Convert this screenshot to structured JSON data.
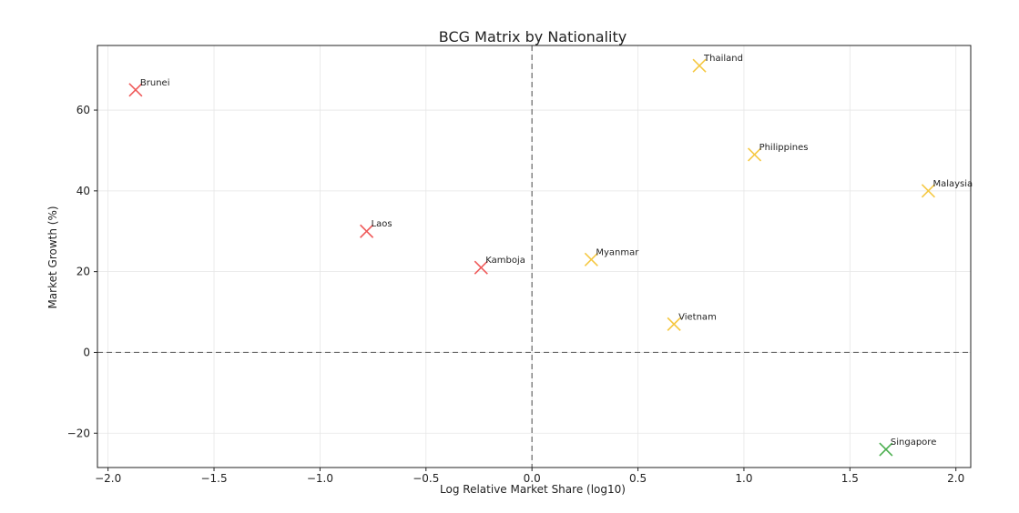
{
  "chart_data": {
    "type": "scatter",
    "title": "BCG Matrix by Nationality",
    "xlabel": "Log Relative Market Share (log10)",
    "ylabel": "Market Growth (%)",
    "xlim": [
      -2.05,
      2.07
    ],
    "ylim": [
      -28.5,
      76
    ],
    "xticks": [
      -2.0,
      -1.5,
      -1.0,
      -0.5,
      0.0,
      0.5,
      1.0,
      1.5,
      2.0
    ],
    "xtick_labels": [
      "−2.0",
      "−1.5",
      "−1.0",
      "−0.5",
      "0.0",
      "0.5",
      "1.0",
      "1.5",
      "2.0"
    ],
    "yticks": [
      -20,
      0,
      20,
      40,
      60
    ],
    "ytick_labels": [
      "−20",
      "0",
      "20",
      "40",
      "60"
    ],
    "grid": true,
    "reference_lines": {
      "x": 0,
      "y": 0
    },
    "marker": "x",
    "points": [
      {
        "label": "Brunei",
        "x": -1.87,
        "y": 65,
        "color": "#ef5a5a"
      },
      {
        "label": "Laos",
        "x": -0.78,
        "y": 30,
        "color": "#ef5a5a"
      },
      {
        "label": "Kamboja",
        "x": -0.24,
        "y": 21,
        "color": "#ef5a5a"
      },
      {
        "label": "Myanmar",
        "x": 0.28,
        "y": 23,
        "color": "#f5c842"
      },
      {
        "label": "Thailand",
        "x": 0.79,
        "y": 71,
        "color": "#f5c842"
      },
      {
        "label": "Philippines",
        "x": 1.05,
        "y": 49,
        "color": "#f5c842"
      },
      {
        "label": "Vietnam",
        "x": 0.67,
        "y": 7,
        "color": "#f5c842"
      },
      {
        "label": "Malaysia",
        "x": 1.87,
        "y": 40,
        "color": "#f5c842"
      },
      {
        "label": "Singapore",
        "x": 1.67,
        "y": -24,
        "color": "#4caf50"
      }
    ]
  }
}
